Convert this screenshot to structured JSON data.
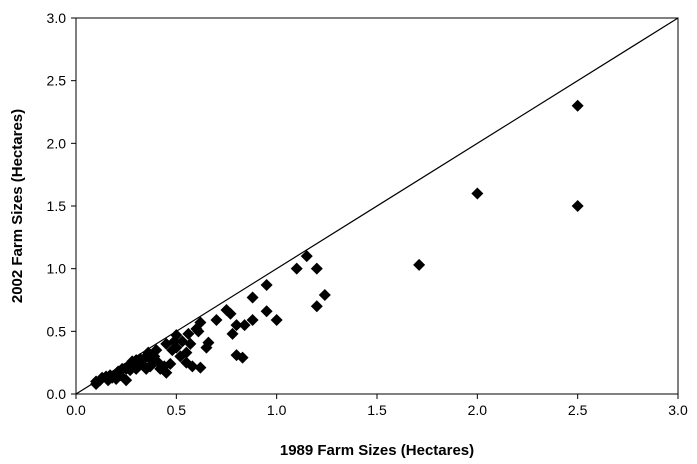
{
  "chart_data": {
    "type": "scatter",
    "title": "",
    "xlabel": "1989 Farm Sizes (Hectares)",
    "ylabel": "2002 Farm Sizes (Hectares)",
    "xlim": [
      0.0,
      3.0
    ],
    "ylim": [
      0.0,
      3.0
    ],
    "xticks": [
      "0.0",
      "0.5",
      "1.0",
      "1.5",
      "2.0",
      "2.5",
      "3.0"
    ],
    "yticks": [
      "0.0",
      "0.5",
      "1.0",
      "1.5",
      "2.0",
      "2.5",
      "3.0"
    ],
    "grid": false,
    "legend": "none",
    "marker": "diamond",
    "marker_color": "#000000",
    "reference_line": {
      "type": "identity",
      "from": [
        0,
        0
      ],
      "to": [
        3,
        3
      ]
    },
    "points": [
      [
        0.1,
        0.1
      ],
      [
        0.1,
        0.08
      ],
      [
        0.12,
        0.11
      ],
      [
        0.13,
        0.13
      ],
      [
        0.15,
        0.14
      ],
      [
        0.16,
        0.11
      ],
      [
        0.17,
        0.15
      ],
      [
        0.18,
        0.13
      ],
      [
        0.2,
        0.12
      ],
      [
        0.21,
        0.18
      ],
      [
        0.22,
        0.15
      ],
      [
        0.23,
        0.2
      ],
      [
        0.25,
        0.11
      ],
      [
        0.25,
        0.2
      ],
      [
        0.26,
        0.22
      ],
      [
        0.27,
        0.19
      ],
      [
        0.28,
        0.26
      ],
      [
        0.3,
        0.27
      ],
      [
        0.3,
        0.2
      ],
      [
        0.32,
        0.28
      ],
      [
        0.33,
        0.24
      ],
      [
        0.35,
        0.3
      ],
      [
        0.35,
        0.2
      ],
      [
        0.36,
        0.33
      ],
      [
        0.37,
        0.22
      ],
      [
        0.38,
        0.26
      ],
      [
        0.39,
        0.3
      ],
      [
        0.4,
        0.35
      ],
      [
        0.41,
        0.25
      ],
      [
        0.42,
        0.2
      ],
      [
        0.44,
        0.22
      ],
      [
        0.45,
        0.4
      ],
      [
        0.45,
        0.17
      ],
      [
        0.47,
        0.24
      ],
      [
        0.48,
        0.35
      ],
      [
        0.49,
        0.42
      ],
      [
        0.5,
        0.47
      ],
      [
        0.5,
        0.37
      ],
      [
        0.52,
        0.3
      ],
      [
        0.53,
        0.42
      ],
      [
        0.55,
        0.33
      ],
      [
        0.55,
        0.25
      ],
      [
        0.56,
        0.48
      ],
      [
        0.57,
        0.4
      ],
      [
        0.58,
        0.22
      ],
      [
        0.6,
        0.52
      ],
      [
        0.61,
        0.5
      ],
      [
        0.62,
        0.57
      ],
      [
        0.62,
        0.21
      ],
      [
        0.65,
        0.37
      ],
      [
        0.66,
        0.41
      ],
      [
        0.7,
        0.59
      ],
      [
        0.75,
        0.67
      ],
      [
        0.77,
        0.64
      ],
      [
        0.78,
        0.48
      ],
      [
        0.8,
        0.55
      ],
      [
        0.8,
        0.31
      ],
      [
        0.83,
        0.29
      ],
      [
        0.84,
        0.55
      ],
      [
        0.88,
        0.77
      ],
      [
        0.88,
        0.59
      ],
      [
        0.95,
        0.87
      ],
      [
        0.95,
        0.66
      ],
      [
        1.0,
        0.59
      ],
      [
        1.1,
        1.0
      ],
      [
        1.15,
        1.1
      ],
      [
        1.2,
        1.0
      ],
      [
        1.2,
        0.7
      ],
      [
        1.24,
        0.79
      ],
      [
        1.71,
        1.03
      ],
      [
        2.0,
        1.6
      ],
      [
        2.5,
        2.3
      ],
      [
        2.5,
        1.5
      ]
    ]
  }
}
